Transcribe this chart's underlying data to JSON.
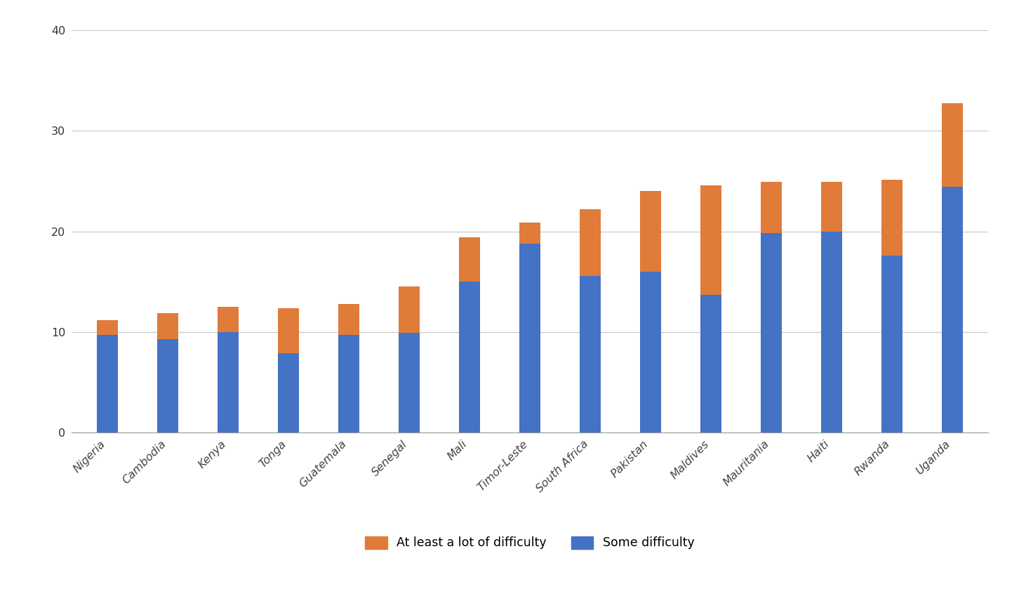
{
  "categories": [
    "Nigeria",
    "Cambodia",
    "Kenya",
    "Tonga",
    "Guatemala",
    "Senegal",
    "Mali",
    "Timor-Leste",
    "South Africa",
    "Pakistan",
    "Maldives",
    "Mauritania",
    "Haiti",
    "Rwanda",
    "Uganda"
  ],
  "some_difficulty": [
    9.7,
    9.3,
    10.0,
    7.9,
    9.7,
    9.9,
    15.0,
    18.8,
    15.6,
    16.0,
    13.7,
    19.8,
    20.0,
    17.6,
    24.4
  ],
  "at_least_lot": [
    1.5,
    2.6,
    2.5,
    4.5,
    3.1,
    4.6,
    4.4,
    2.1,
    6.6,
    8.0,
    10.9,
    5.1,
    4.9,
    7.5,
    8.3
  ],
  "blue_color": "#4472C4",
  "orange_color": "#E07B3A",
  "background_color": "#FFFFFF",
  "grid_color": "#C8C8C8",
  "ylim": [
    0,
    40
  ],
  "yticks": [
    0,
    10,
    20,
    30,
    40
  ],
  "legend_label_orange": "At least a lot of difficulty",
  "legend_label_blue": "Some difficulty",
  "bar_width": 0.35,
  "tick_fontsize": 11.5,
  "legend_fontsize": 12.5
}
